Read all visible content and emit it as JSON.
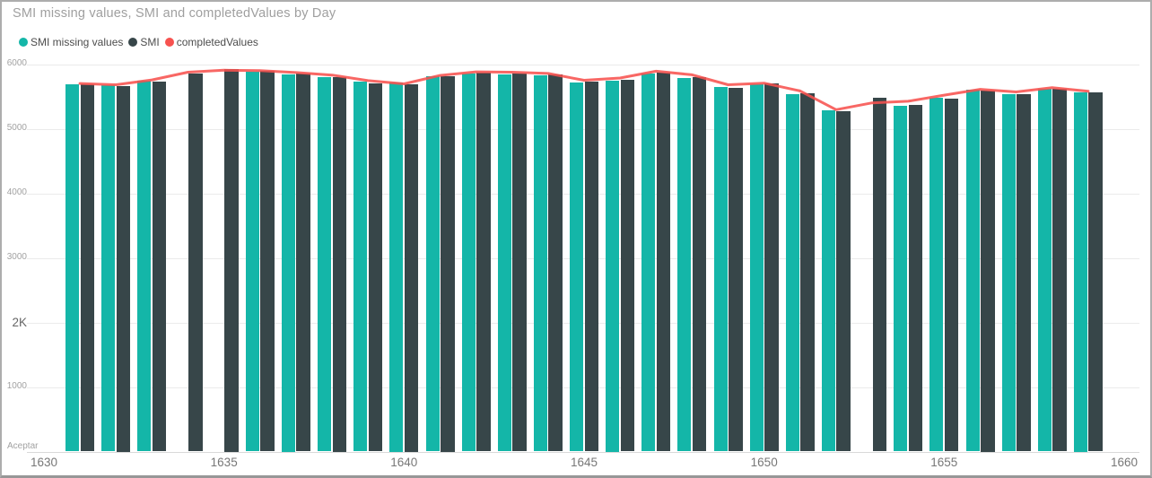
{
  "header": {
    "title": "SMI missing values, SMI and completedValues by Day"
  },
  "colors": {
    "teal": "#14B6A8",
    "dark": "#374649",
    "red": "#F7524F",
    "grid": "#ebebeb"
  },
  "chart_data": {
    "type": "bar",
    "subtype": "clustered-column-with-line",
    "title": "SMI missing values, SMI and completedValues by Day",
    "xlabel": "Day",
    "ylabel": "",
    "ylim": [
      0,
      6000
    ],
    "grid": true,
    "legend_position": "top-left",
    "legend": [
      {
        "label": "SMI missing values",
        "color": "#14B6A8",
        "kind": "bar"
      },
      {
        "label": "SMI",
        "color": "#374649",
        "kind": "bar"
      },
      {
        "label": "completedValues",
        "color": "#F7524F",
        "kind": "line"
      }
    ],
    "x_ticks": [
      {
        "value": 1630,
        "label": "1630"
      },
      {
        "value": 1635,
        "label": "1635"
      },
      {
        "value": 1640,
        "label": "1640"
      },
      {
        "value": 1645,
        "label": "1645"
      },
      {
        "value": 1650,
        "label": "1650"
      },
      {
        "value": 1655,
        "label": "1655"
      },
      {
        "value": 1660,
        "label": "1660"
      }
    ],
    "y_ticks": [
      {
        "value": 6000,
        "label": "6000"
      },
      {
        "value": 5000,
        "label": "5000"
      },
      {
        "value": 4000,
        "label": "4000"
      },
      {
        "value": 3000,
        "label": "3000"
      },
      {
        "value": 2000,
        "label": "2K"
      },
      {
        "value": 1000,
        "label": "1000"
      },
      {
        "value": 0,
        "label": "Aceptar"
      }
    ],
    "categories": [
      1631,
      1632,
      1633,
      1634,
      1635,
      1636,
      1637,
      1638,
      1639,
      1640,
      1641,
      1642,
      1643,
      1644,
      1645,
      1646,
      1647,
      1648,
      1649,
      1650,
      1651,
      1652,
      1653,
      1654,
      1655,
      1656,
      1657,
      1658,
      1659
    ],
    "series": [
      {
        "name": "SMI missing values",
        "values": [
          5690,
          5670,
          5745,
          null,
          null,
          5880,
          5840,
          5800,
          5725,
          5715,
          5810,
          5855,
          5845,
          5830,
          5720,
          5750,
          5860,
          5790,
          5640,
          5690,
          5540,
          5280,
          null,
          5350,
          5480,
          5600,
          5530,
          5620,
          5570
        ]
      },
      {
        "name": "SMI",
        "values": [
          5685,
          5660,
          5735,
          5855,
          5930,
          5890,
          5850,
          5805,
          5705,
          5695,
          5820,
          5870,
          5855,
          5835,
          5725,
          5760,
          5870,
          5800,
          5630,
          5700,
          5550,
          5270,
          5480,
          5370,
          5470,
          5590,
          5540,
          5615,
          5560
        ]
      },
      {
        "name": "completedValues",
        "values": [
          5700,
          5680,
          5755,
          5875,
          5905,
          5900,
          5870,
          5830,
          5745,
          5695,
          5825,
          5880,
          5875,
          5855,
          5750,
          5785,
          5890,
          5835,
          5680,
          5705,
          5585,
          5295,
          5400,
          5425,
          5520,
          5610,
          5570,
          5635,
          5580
        ]
      }
    ]
  }
}
